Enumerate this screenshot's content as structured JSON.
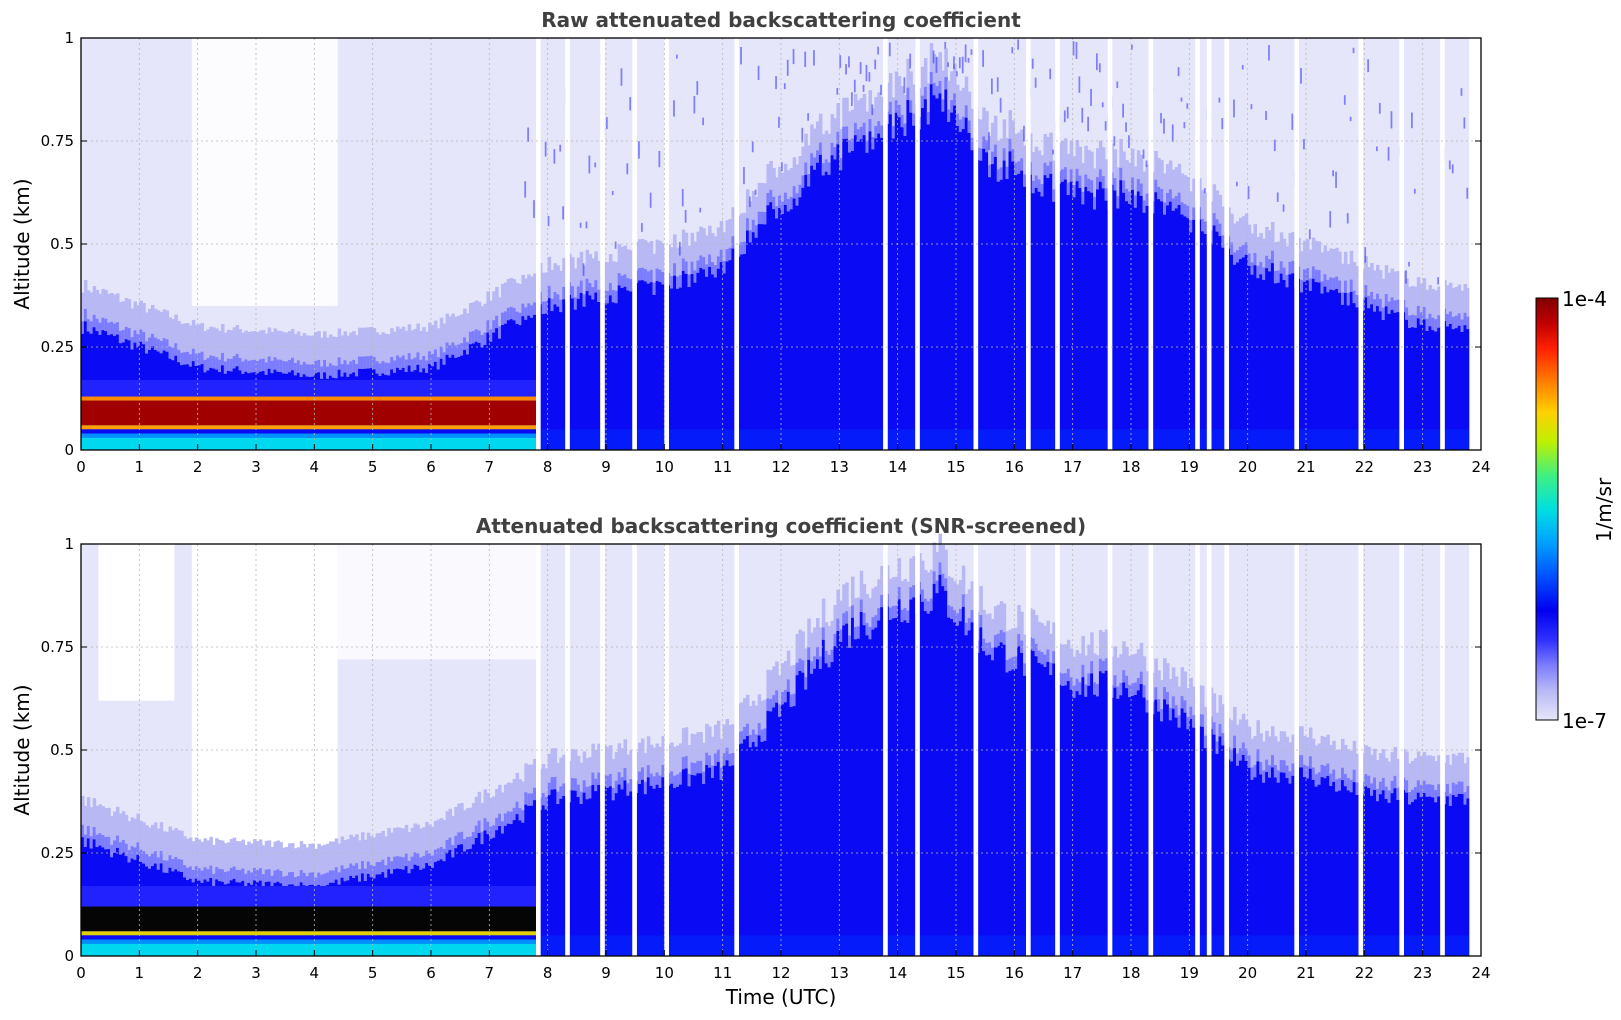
{
  "chart_data": [
    {
      "type": "heatmap",
      "title": "Raw attenuated backscattering coefficient",
      "xlabel": "",
      "ylabel": "Altitude (km)",
      "xlim": [
        0,
        24
      ],
      "ylim": [
        0,
        1
      ],
      "xticks": [
        "0",
        "1",
        "2",
        "3",
        "4",
        "5",
        "6",
        "7",
        "8",
        "9",
        "10",
        "11",
        "12",
        "13",
        "14",
        "15",
        "16",
        "17",
        "18",
        "19",
        "20",
        "21",
        "22",
        "23",
        "24"
      ],
      "yticks": [
        "0",
        "0.25",
        "0.5",
        "0.75",
        "1"
      ],
      "grid": true,
      "screened": false,
      "layers": [
        {
          "name": "dense aerosol / fog layer",
          "x": [
            0,
            7.8
          ],
          "y": [
            0.06,
            0.12
          ],
          "level": "1e-4"
        },
        {
          "name": "near-surface layer",
          "x": [
            0,
            7.8
          ],
          "y": [
            0.0,
            0.03
          ],
          "level": "5e-6"
        },
        {
          "name": "boundary layer peak",
          "x": [
            14.5,
            14.5
          ],
          "y": [
            0,
            0.85
          ],
          "level": "1e-6"
        }
      ],
      "mixing_layer_top_km": [
        {
          "t": 0,
          "h": 0.3
        },
        {
          "t": 2,
          "h": 0.2
        },
        {
          "t": 4,
          "h": 0.18
        },
        {
          "t": 6,
          "h": 0.2
        },
        {
          "t": 8,
          "h": 0.35
        },
        {
          "t": 10,
          "h": 0.4
        },
        {
          "t": 11,
          "h": 0.45
        },
        {
          "t": 12,
          "h": 0.6
        },
        {
          "t": 13,
          "h": 0.72
        },
        {
          "t": 14,
          "h": 0.8
        },
        {
          "t": 14.7,
          "h": 0.85
        },
        {
          "t": 15.5,
          "h": 0.7
        },
        {
          "t": 16,
          "h": 0.68
        },
        {
          "t": 17,
          "h": 0.62
        },
        {
          "t": 18,
          "h": 0.62
        },
        {
          "t": 19,
          "h": 0.56
        },
        {
          "t": 20,
          "h": 0.45
        },
        {
          "t": 21,
          "h": 0.4
        },
        {
          "t": 22,
          "h": 0.35
        },
        {
          "t": 23,
          "h": 0.3
        },
        {
          "t": 23.8,
          "h": 0.3
        }
      ],
      "missing_data_times": [
        7.8,
        8.3,
        8.9,
        9.45,
        10.0,
        11.2,
        13.75,
        14.3,
        15.3,
        16.2,
        16.7,
        17.6,
        18.3,
        19.1,
        19.3,
        19.6,
        20.8,
        21.9,
        22.6,
        23.3
      ]
    },
    {
      "type": "heatmap",
      "title": "Attenuated backscattering coefficient (SNR-screened)",
      "xlabel": "Time (UTC)",
      "ylabel": "Altitude (km)",
      "xlim": [
        0,
        24
      ],
      "ylim": [
        0,
        1
      ],
      "xticks": [
        "0",
        "1",
        "2",
        "3",
        "4",
        "5",
        "6",
        "7",
        "8",
        "9",
        "10",
        "11",
        "12",
        "13",
        "14",
        "15",
        "16",
        "17",
        "18",
        "19",
        "20",
        "21",
        "22",
        "23",
        "24"
      ],
      "yticks": [
        "0",
        "0.25",
        "0.5",
        "0.75",
        "1"
      ],
      "grid": true,
      "screened": true,
      "layers": [
        {
          "name": "saturated layer (black)",
          "x": [
            0,
            7.8
          ],
          "y": [
            0.06,
            0.12
          ],
          "level": "saturated"
        },
        {
          "name": "near-surface layer",
          "x": [
            0,
            7.8
          ],
          "y": [
            0.0,
            0.03
          ],
          "level": "5e-6"
        }
      ],
      "mixing_layer_top_km": [
        {
          "t": 0,
          "h": 0.28
        },
        {
          "t": 2,
          "h": 0.18
        },
        {
          "t": 4,
          "h": 0.17
        },
        {
          "t": 6,
          "h": 0.22
        },
        {
          "t": 8,
          "h": 0.38
        },
        {
          "t": 10,
          "h": 0.42
        },
        {
          "t": 11,
          "h": 0.45
        },
        {
          "t": 12,
          "h": 0.6
        },
        {
          "t": 13,
          "h": 0.78
        },
        {
          "t": 14,
          "h": 0.85
        },
        {
          "t": 14.7,
          "h": 0.88
        },
        {
          "t": 15.5,
          "h": 0.75
        },
        {
          "t": 16,
          "h": 0.72
        },
        {
          "t": 17,
          "h": 0.66
        },
        {
          "t": 18,
          "h": 0.65
        },
        {
          "t": 19,
          "h": 0.56
        },
        {
          "t": 20,
          "h": 0.45
        },
        {
          "t": 21,
          "h": 0.44
        },
        {
          "t": 22,
          "h": 0.39
        },
        {
          "t": 23,
          "h": 0.38
        },
        {
          "t": 23.8,
          "h": 0.38
        }
      ],
      "missing_data_times": [
        7.8,
        8.3,
        8.9,
        9.45,
        10.0,
        11.2,
        13.75,
        14.3,
        15.3,
        16.2,
        16.7,
        17.6,
        18.3,
        19.1,
        19.3,
        19.6,
        20.8,
        21.9,
        22.6,
        23.3
      ]
    }
  ],
  "colorbar": {
    "label": "1/m/sr",
    "max_label": "1e-4",
    "min_label": "1e-7",
    "colors": [
      "#e6e6fa",
      "#b8b8f5",
      "#8c8cff",
      "#5a5aff",
      "#2a2aff",
      "#0000f5",
      "#0033ff",
      "#0077ff",
      "#00b0ff",
      "#00e0e0",
      "#00e890",
      "#40f040",
      "#a0f000",
      "#e0f000",
      "#ffd000",
      "#ff9000",
      "#ff4000",
      "#e00000",
      "#b00000",
      "#800000"
    ]
  },
  "style": {
    "title_color": "#404040",
    "axis_color": "#000000",
    "grid_color": "#b8b8b8"
  }
}
